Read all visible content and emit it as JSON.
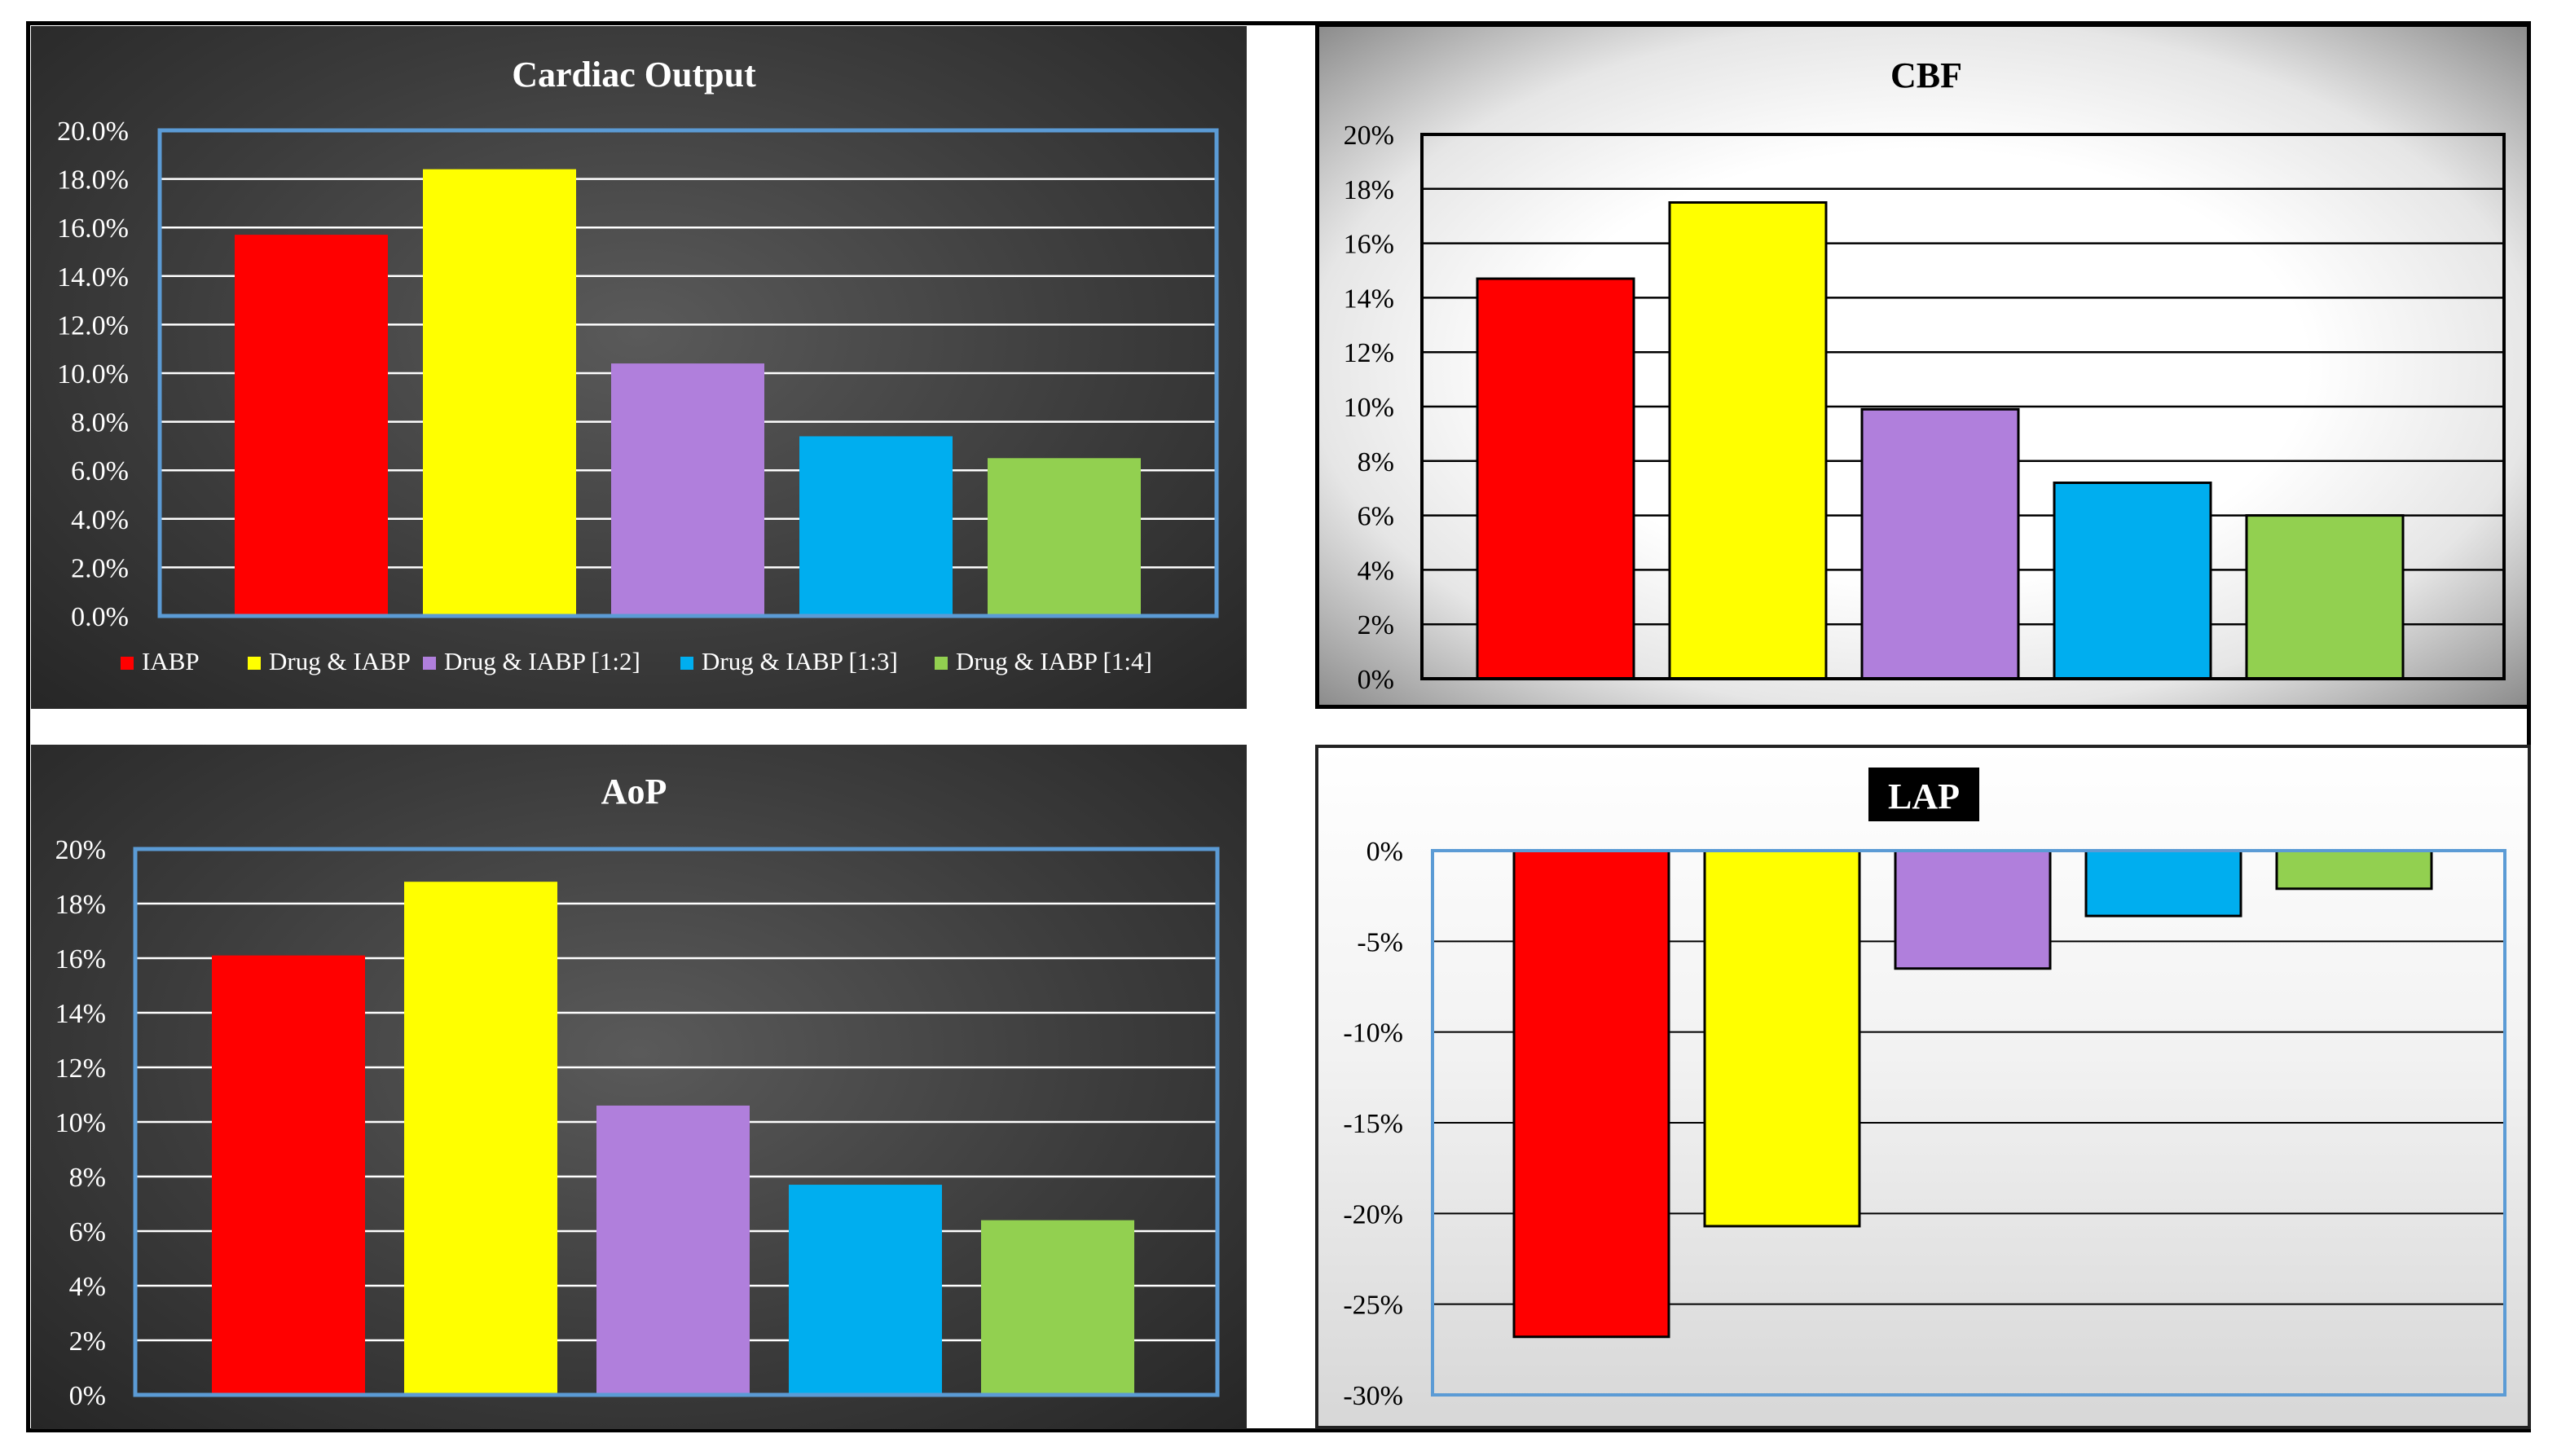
{
  "legend_labels": [
    "IABP",
    "Drug & IABP",
    "Drug & IABP [1:2]",
    "Drug & IABP [1:3]",
    "Drug & IABP [1:4]"
  ],
  "series_colors": [
    "#ff0000",
    "#ffff00",
    "#b07fdc",
    "#00aeef",
    "#92d050"
  ],
  "chart_data": [
    {
      "id": "cardiac-output",
      "type": "bar",
      "title": "Cardiac  Output",
      "categories": [
        "IABP",
        "Drug & IABP",
        "Drug & IABP [1:2]",
        "Drug & IABP [1:3]",
        "Drug & IABP [1:4]"
      ],
      "values": [
        15.7,
        18.4,
        10.4,
        7.4,
        6.5
      ],
      "ylim": [
        0,
        20
      ],
      "ticks": [
        "0.0%",
        "2.0%",
        "4.0%",
        "6.0%",
        "8.0%",
        "10.0%",
        "12.0%",
        "14.0%",
        "16.0%",
        "18.0%",
        "20.0%"
      ],
      "ylabel": "",
      "xlabel": "",
      "grid": true,
      "legend": "bottom"
    },
    {
      "id": "cbf",
      "type": "bar",
      "title": "CBF",
      "categories": [
        "IABP",
        "Drug & IABP",
        "Drug & IABP [1:2]",
        "Drug & IABP [1:3]",
        "Drug & IABP [1:4]"
      ],
      "values": [
        14.7,
        17.5,
        9.9,
        7.2,
        6.0
      ],
      "ylim": [
        0,
        20
      ],
      "ticks": [
        "0%",
        "2%",
        "4%",
        "6%",
        "8%",
        "10%",
        "12%",
        "14%",
        "16%",
        "18%",
        "20%"
      ],
      "ylabel": "",
      "xlabel": "",
      "grid": true,
      "legend": "none"
    },
    {
      "id": "aop",
      "type": "bar",
      "title": "AoP",
      "categories": [
        "IABP",
        "Drug & IABP",
        "Drug & IABP [1:2]",
        "Drug & IABP [1:3]",
        "Drug & IABP [1:4]"
      ],
      "values": [
        16.1,
        18.8,
        10.6,
        7.7,
        6.4
      ],
      "ylim": [
        0,
        20
      ],
      "ticks": [
        "0%",
        "2%",
        "4%",
        "6%",
        "8%",
        "10%",
        "12%",
        "14%",
        "16%",
        "18%",
        "20%"
      ],
      "ylabel": "",
      "xlabel": "",
      "grid": true,
      "legend": "none"
    },
    {
      "id": "lap",
      "type": "bar",
      "title": "LAP",
      "categories": [
        "IABP",
        "Drug & IABP",
        "Drug & IABP [1:2]",
        "Drug & IABP [1:3]",
        "Drug & IABP [1:4]"
      ],
      "values": [
        -26.8,
        -20.7,
        -6.5,
        -3.6,
        -2.1
      ],
      "ylim": [
        -30,
        0
      ],
      "ticks": [
        "-30%",
        "-25%",
        "-20%",
        "-15%",
        "-10%",
        "-5%",
        "0%"
      ],
      "ylabel": "",
      "xlabel": "",
      "grid": true,
      "legend": "none"
    }
  ]
}
